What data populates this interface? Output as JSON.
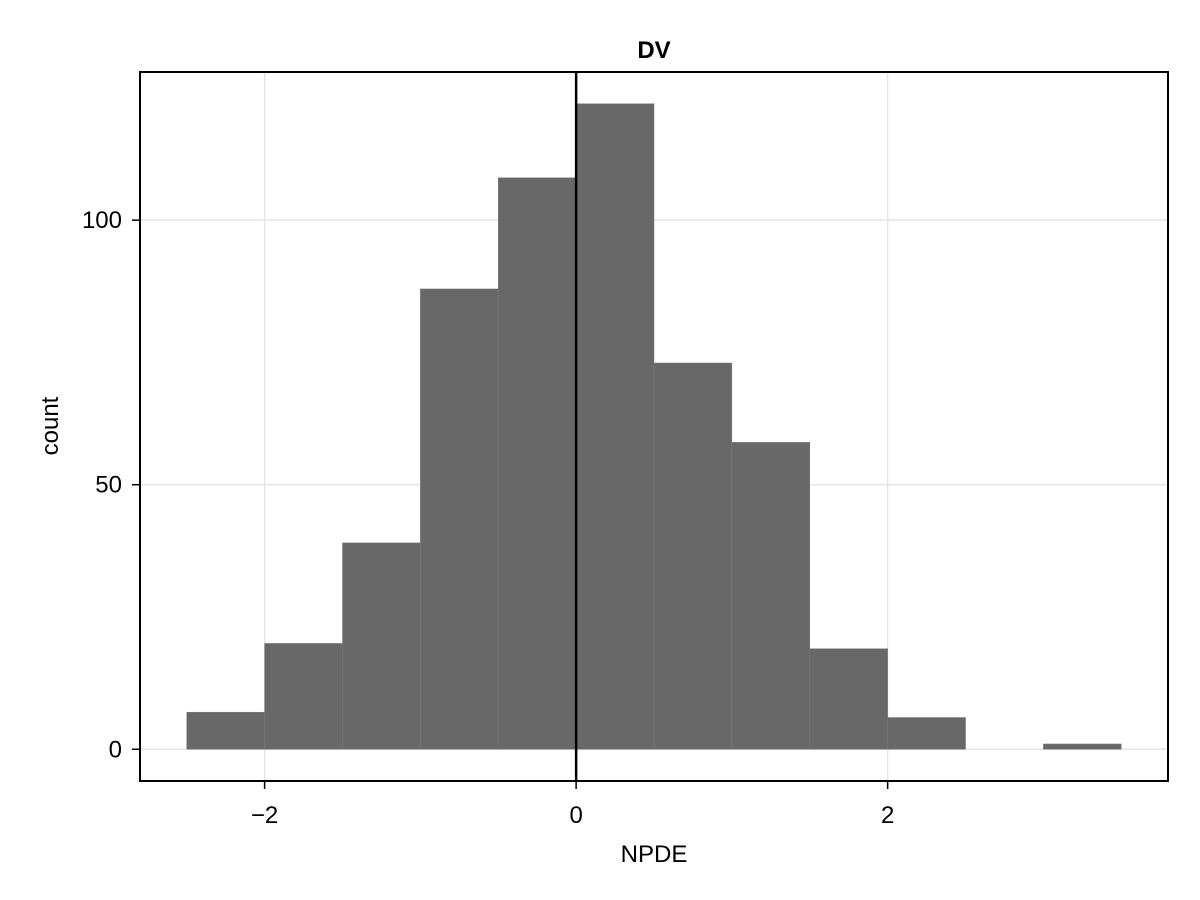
{
  "chart_data": {
    "type": "bar",
    "title": "DV",
    "xlabel": "NPDE",
    "ylabel": "count",
    "bins": [
      {
        "start": -2.5,
        "end": -2.0,
        "count": 7
      },
      {
        "start": -2.0,
        "end": -1.5,
        "count": 20
      },
      {
        "start": -1.5,
        "end": -1.0,
        "count": 39
      },
      {
        "start": -1.0,
        "end": -0.5,
        "count": 87
      },
      {
        "start": -0.5,
        "end": 0.0,
        "count": 108
      },
      {
        "start": 0.0,
        "end": 0.5,
        "count": 122
      },
      {
        "start": 0.5,
        "end": 1.0,
        "count": 73
      },
      {
        "start": 1.0,
        "end": 1.5,
        "count": 58
      },
      {
        "start": 1.5,
        "end": 2.0,
        "count": 19
      },
      {
        "start": 2.0,
        "end": 2.5,
        "count": 6
      },
      {
        "start": 2.5,
        "end": 3.0,
        "count": 0
      },
      {
        "start": 3.0,
        "end": 3.5,
        "count": 1
      }
    ],
    "xlim": [
      -2.8,
      3.8
    ],
    "ylim": [
      -6,
      128
    ],
    "xticks": [
      -2,
      0,
      2
    ],
    "xtick_labels": [
      "−2",
      "0",
      "2"
    ],
    "yticks": [
      0,
      50,
      100
    ],
    "ytick_labels": [
      "0",
      "50",
      "100"
    ],
    "reference_line_x": 0,
    "grid": true,
    "bar_color": "#686868",
    "grid_color": "#e6e6e6",
    "reference_line_color": "#000000"
  }
}
